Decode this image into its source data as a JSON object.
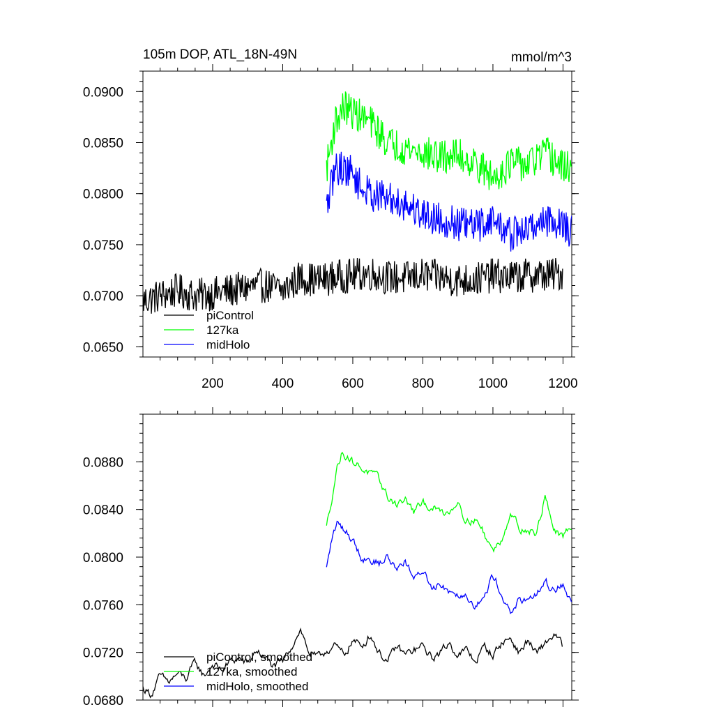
{
  "chart_data": [
    {
      "type": "line",
      "title": "105m DOP, ATL_18N-49N",
      "units": "mmol/m^3",
      "xlabel": "",
      "ylabel": "",
      "xlim": [
        1,
        1225
      ],
      "ylim": [
        0.064,
        0.092
      ],
      "x_ticks": [
        "200",
        "400",
        "600",
        "800",
        "1000",
        "1200"
      ],
      "y_ticks": [
        "0.0650",
        "0.0700",
        "0.0750",
        "0.0800",
        "0.0850",
        "0.0900"
      ],
      "grid": false,
      "legend_position": "bottom-left",
      "series": [
        {
          "name": "piControl",
          "color": "#000000",
          "x": [
            1,
            50,
            100,
            150,
            200,
            250,
            300,
            350,
            400,
            450,
            500,
            550,
            600,
            650,
            700,
            750,
            800,
            850,
            900,
            950,
            1000,
            1050,
            1100,
            1150,
            1200
          ],
          "y": [
            0.0695,
            0.07,
            0.0705,
            0.07,
            0.0702,
            0.0705,
            0.0708,
            0.071,
            0.0705,
            0.0718,
            0.0715,
            0.0718,
            0.072,
            0.0722,
            0.0718,
            0.0717,
            0.072,
            0.0718,
            0.0715,
            0.0716,
            0.072,
            0.0718,
            0.072,
            0.072,
            0.0722
          ]
        },
        {
          "name": "127ka",
          "color": "#00ff00",
          "x": [
            525,
            550,
            575,
            600,
            625,
            650,
            700,
            750,
            800,
            850,
            900,
            950,
            1000,
            1050,
            1100,
            1150,
            1200,
            1225
          ],
          "y": [
            0.0825,
            0.087,
            0.0885,
            0.088,
            0.0875,
            0.087,
            0.085,
            0.0845,
            0.084,
            0.0835,
            0.0838,
            0.083,
            0.0815,
            0.083,
            0.0828,
            0.084,
            0.0825,
            0.0828
          ]
        },
        {
          "name": "midHolo",
          "color": "#0000ff",
          "x": [
            525,
            550,
            575,
            600,
            625,
            650,
            700,
            750,
            800,
            850,
            900,
            950,
            1000,
            1050,
            1100,
            1150,
            1200,
            1225
          ],
          "y": [
            0.0785,
            0.0825,
            0.0825,
            0.082,
            0.0805,
            0.08,
            0.0795,
            0.079,
            0.078,
            0.0775,
            0.077,
            0.0768,
            0.0775,
            0.076,
            0.0765,
            0.0775,
            0.077,
            0.0762
          ]
        }
      ]
    },
    {
      "type": "line",
      "title": "",
      "xlabel": "",
      "ylabel": "",
      "xlim": [
        1,
        1225
      ],
      "ylim": [
        0.068,
        0.092
      ],
      "x_ticks": [],
      "y_ticks": [
        "0.0680",
        "0.0720",
        "0.0760",
        "0.0800",
        "0.0840",
        "0.0880"
      ],
      "grid": false,
      "legend_position": "bottom-left",
      "series": [
        {
          "name": "piControl, smoothed",
          "color": "#000000",
          "x": [
            1,
            25,
            50,
            75,
            100,
            125,
            150,
            175,
            200,
            225,
            250,
            275,
            300,
            325,
            350,
            375,
            400,
            425,
            450,
            475,
            500,
            525,
            550,
            575,
            600,
            625,
            650,
            675,
            700,
            725,
            750,
            775,
            800,
            825,
            850,
            875,
            900,
            925,
            950,
            975,
            1000,
            1025,
            1050,
            1075,
            1100,
            1125,
            1150,
            1175,
            1200
          ],
          "y": [
            0.069,
            0.0685,
            0.07,
            0.0695,
            0.0702,
            0.0698,
            0.0712,
            0.07,
            0.071,
            0.0705,
            0.0712,
            0.0715,
            0.071,
            0.0722,
            0.0715,
            0.0708,
            0.0712,
            0.0725,
            0.074,
            0.072,
            0.0715,
            0.0722,
            0.0725,
            0.0718,
            0.073,
            0.0725,
            0.0735,
            0.072,
            0.0712,
            0.0725,
            0.0718,
            0.0722,
            0.0725,
            0.0715,
            0.072,
            0.0728,
            0.0718,
            0.0722,
            0.0712,
            0.0725,
            0.0718,
            0.0728,
            0.0732,
            0.072,
            0.073,
            0.0718,
            0.0728,
            0.0735,
            0.0725
          ]
        },
        {
          "name": "127ka, smoothed",
          "color": "#00ff00",
          "x": [
            525,
            540,
            555,
            570,
            585,
            600,
            625,
            650,
            675,
            700,
            725,
            750,
            775,
            800,
            825,
            850,
            875,
            900,
            925,
            950,
            975,
            1000,
            1025,
            1050,
            1075,
            1100,
            1125,
            1150,
            1175,
            1200,
            1225
          ],
          "y": [
            0.0825,
            0.085,
            0.0875,
            0.0888,
            0.0885,
            0.088,
            0.0875,
            0.087,
            0.0865,
            0.085,
            0.0845,
            0.0848,
            0.0838,
            0.0845,
            0.0842,
            0.0838,
            0.0838,
            0.0848,
            0.083,
            0.0832,
            0.082,
            0.0805,
            0.0815,
            0.0838,
            0.0825,
            0.0822,
            0.082,
            0.0852,
            0.0822,
            0.0815,
            0.0828
          ]
        },
        {
          "name": "midHolo, smoothed",
          "color": "#0000ff",
          "x": [
            525,
            540,
            555,
            570,
            585,
            600,
            625,
            650,
            675,
            700,
            725,
            750,
            775,
            800,
            825,
            850,
            875,
            900,
            925,
            950,
            975,
            1000,
            1025,
            1050,
            1075,
            1100,
            1125,
            1150,
            1175,
            1200,
            1225
          ],
          "y": [
            0.079,
            0.0815,
            0.0828,
            0.0825,
            0.082,
            0.0815,
            0.08,
            0.0798,
            0.0795,
            0.08,
            0.079,
            0.0798,
            0.078,
            0.079,
            0.0775,
            0.0778,
            0.0772,
            0.077,
            0.0768,
            0.076,
            0.0765,
            0.0785,
            0.077,
            0.0752,
            0.0765,
            0.076,
            0.077,
            0.0778,
            0.0772,
            0.0778,
            0.076
          ]
        }
      ]
    }
  ]
}
